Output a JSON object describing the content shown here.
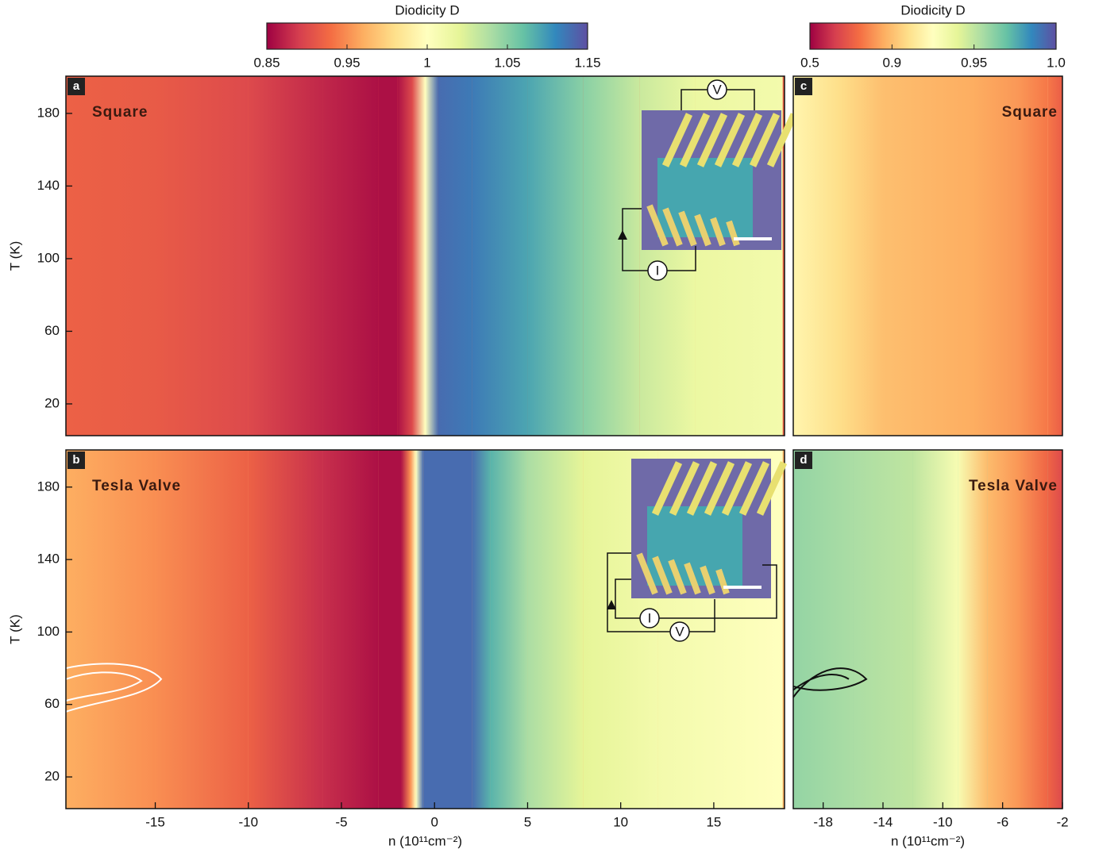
{
  "chart_data": [
    {
      "type": "heatmap",
      "panel_label": "a",
      "title": "Square",
      "ylabel": "T (K)",
      "x": [
        -19.7,
        -15,
        -10,
        -6,
        -3,
        -2,
        -1.2,
        -0.5,
        0.2,
        2,
        5,
        8,
        11,
        14,
        18.7
      ],
      "values": [
        0.92,
        0.915,
        0.9,
        0.875,
        0.86,
        0.86,
        0.9,
        1.0,
        1.13,
        1.12,
        1.09,
        1.05,
        1.03,
        1.015,
        1.01
      ],
      "xlim": [
        -19.8,
        18.8
      ],
      "ylim": [
        2.5,
        200.5
      ],
      "yticks": [
        20,
        60,
        100,
        140,
        180
      ],
      "inset_labels": [
        "V",
        "I"
      ]
    },
    {
      "type": "heatmap",
      "panel_label": "b",
      "title": "Tesla Valve",
      "ylabel": "T (K)",
      "xlabel": "n (10¹¹cm⁻²)",
      "x": [
        -19.7,
        -15,
        -10,
        -6,
        -3,
        -1.8,
        -1.3,
        -1.0,
        -0.6,
        2,
        3,
        5,
        8,
        12,
        18.7
      ],
      "values": [
        0.96,
        0.95,
        0.92,
        0.88,
        0.86,
        0.86,
        0.95,
        1.0,
        1.13,
        1.13,
        1.08,
        1.04,
        1.02,
        1.01,
        1.0
      ],
      "xlim": [
        -19.8,
        18.8
      ],
      "xticks": [
        -15,
        -10,
        -5,
        0,
        5,
        10,
        15
      ],
      "ylim": [
        2.5,
        200.5
      ],
      "yticks": [
        20,
        60,
        100,
        140,
        180
      ],
      "inset_labels": [
        "I",
        "V"
      ]
    },
    {
      "type": "heatmap",
      "panel_label": "c",
      "title": "Square",
      "x": [
        -20,
        -17,
        -14,
        -11,
        -8,
        -5,
        -3,
        -2
      ],
      "values": [
        0.92,
        0.91,
        0.9,
        0.88,
        0.86,
        0.82,
        0.76,
        0.7
      ],
      "xlim": [
        -20,
        -2
      ],
      "ylim": [
        2.5,
        200.5
      ]
    },
    {
      "type": "heatmap",
      "panel_label": "d",
      "title": "Tesla Valve",
      "xlabel": "n (10¹¹cm⁻²)",
      "x": [
        -20,
        -16,
        -12,
        -9,
        -7,
        -5,
        -3,
        -2
      ],
      "values": [
        0.96,
        0.955,
        0.95,
        0.93,
        0.89,
        0.82,
        0.72,
        0.65
      ],
      "xlim": [
        -20,
        -2
      ],
      "xticks": [
        -18,
        -14,
        -10,
        -6,
        -2
      ],
      "ylim": [
        2.5,
        200.5
      ]
    }
  ],
  "colorbars": [
    {
      "title": "Diodicity D",
      "ticks": [
        0.85,
        0.95,
        1,
        1.05,
        1.15
      ]
    },
    {
      "title": "Diodicity D",
      "ticks": [
        0.5,
        0.9,
        0.95,
        {
          "value": 1,
          "label": "1.0"
        }
      ]
    }
  ]
}
